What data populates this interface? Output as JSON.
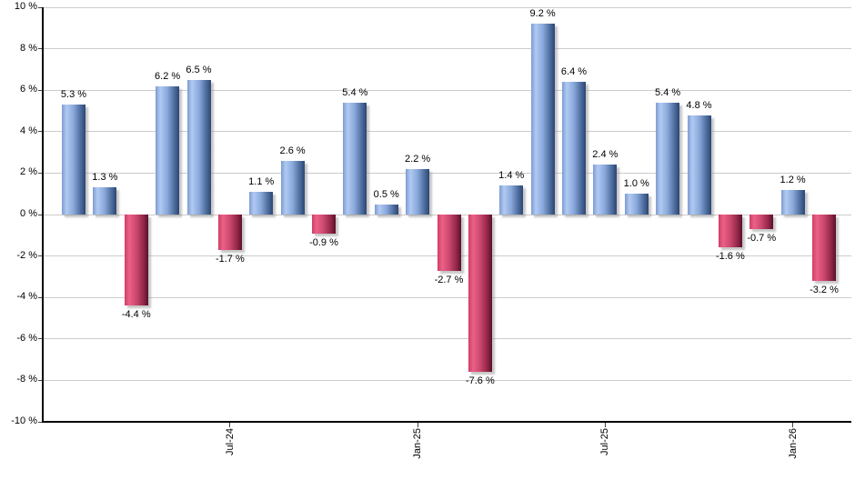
{
  "chart_data": {
    "type": "bar",
    "title": "",
    "unit": "%",
    "values": [
      5.3,
      1.3,
      -4.4,
      6.2,
      6.5,
      -1.7,
      1.1,
      2.6,
      -0.9,
      5.4,
      0.5,
      2.2,
      -2.7,
      -7.6,
      1.4,
      9.2,
      6.4,
      2.4,
      1.0,
      5.4,
      4.8,
      -1.6,
      -0.7,
      1.2,
      -3.2
    ],
    "bar_labels": [
      "5.3 %",
      "1.3 %",
      "-4.4 %",
      "6.2 %",
      "6.5 %",
      "-1.7 %",
      "1.1 %",
      "2.6 %",
      "-0.9 %",
      "5.4 %",
      "0.5 %",
      "2.2 %",
      "-2.7 %",
      "-7.6 %",
      "1.4 %",
      "9.2 %",
      "6.4 %",
      "2.4 %",
      "1.0 %",
      "5.4 %",
      "4.8 %",
      "-1.6 %",
      "-0.7 %",
      "1.2 %",
      "-3.2 %"
    ],
    "x_axis": {
      "tick_labels": [
        {
          "label": "Jul-24",
          "bar_index": 5
        },
        {
          "label": "Jan-25",
          "bar_index": 11
        },
        {
          "label": "Jul-25",
          "bar_index": 17
        },
        {
          "label": "Jan-26",
          "bar_index": 23
        }
      ]
    },
    "y_axis": {
      "min": -10,
      "max": 10,
      "step": 2,
      "tick_labels": [
        "10 %",
        "8 %",
        "6 %",
        "4 %",
        "2 %",
        "0 %",
        "-2 %",
        "-4 %",
        "-6 %",
        "-8 %",
        "-10 %"
      ]
    },
    "grid": true,
    "legend": false,
    "colors": {
      "positive_edge": "#7e9cd1",
      "positive_light": "#b0caf2",
      "positive_mid": "#89a7da",
      "positive_shade": "#50709f",
      "positive_dark": "#2b4577",
      "negative_edge": "#ce3f66",
      "negative_light": "#ec6086",
      "negative_mid": "#cb476d",
      "negative_shade": "#96294b",
      "negative_dark": "#5c0f2a",
      "gridline": "#cccccc",
      "axis": "#000000",
      "label": "#000000"
    }
  }
}
